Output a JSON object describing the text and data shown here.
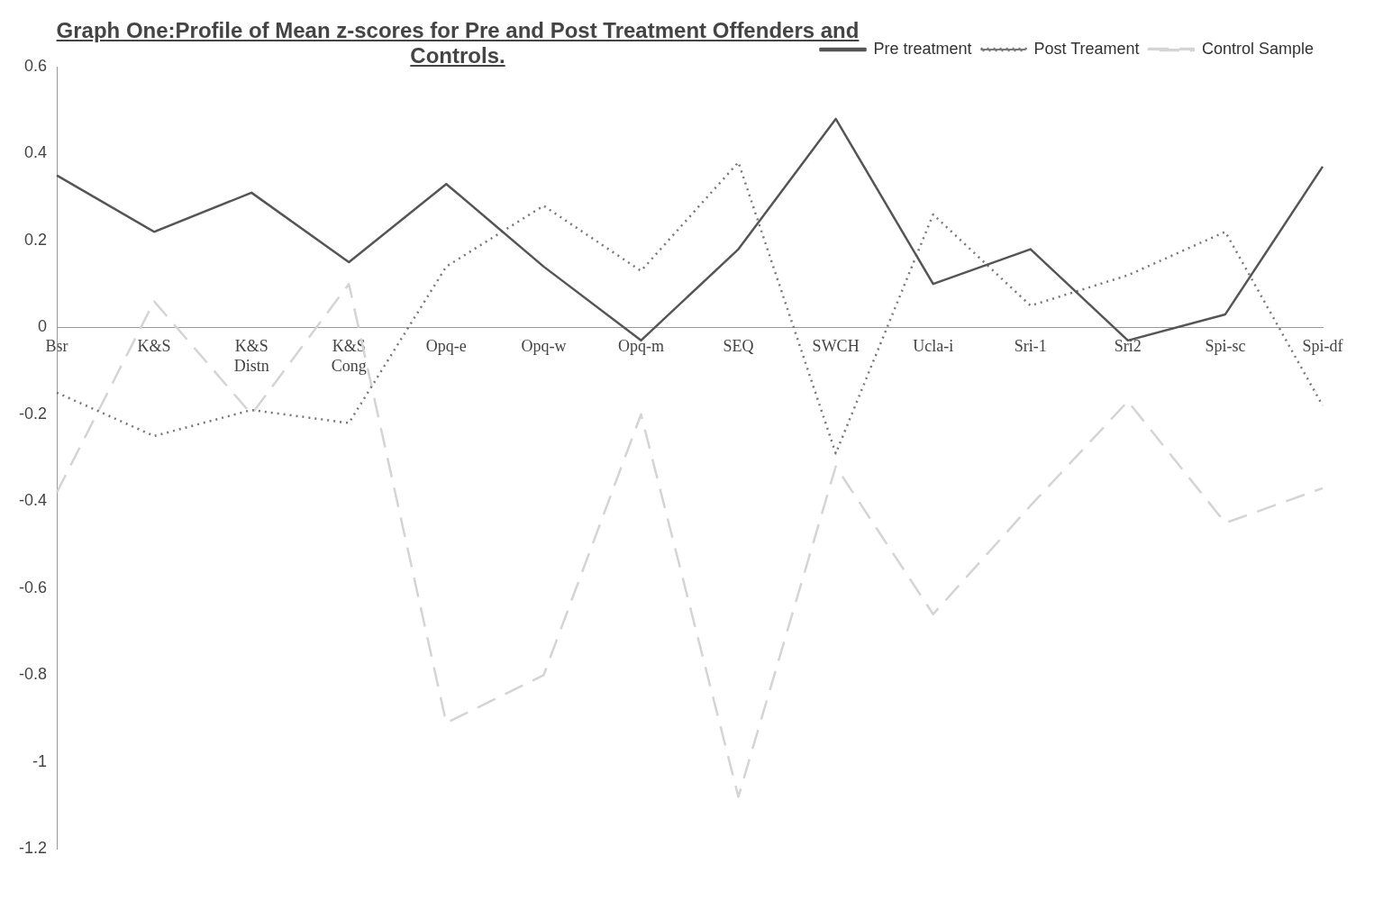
{
  "chart_data": {
    "type": "line",
    "title": "Graph One:Profile of Mean z-scores for Pre and Post Treatment Offenders and Controls.",
    "categories": [
      "Bsr",
      "K&S",
      "K&S Distn",
      "K&S Cong",
      "Opq-e",
      "Opq-w",
      "Opq-m",
      "SEQ",
      "SWCH",
      "Ucla-i",
      "Sri-1",
      "Sri2",
      "Spi-sc",
      "Spi-df"
    ],
    "series": [
      {
        "name": "Pre treatment",
        "color": "#555555",
        "line_style": "solid",
        "values": [
          0.35,
          0.22,
          0.31,
          0.15,
          0.33,
          0.14,
          -0.03,
          0.18,
          0.48,
          0.1,
          0.18,
          -0.03,
          0.03,
          0.37
        ]
      },
      {
        "name": "Post Treament",
        "color": "#777777",
        "line_style": "dotted",
        "values": [
          -0.15,
          -0.25,
          -0.19,
          -0.22,
          0.14,
          0.28,
          0.13,
          0.38,
          -0.29,
          0.26,
          0.05,
          0.12,
          0.22,
          -0.18
        ]
      },
      {
        "name": "Control Sample",
        "color": "#d4d4d4",
        "line_style": "dashed",
        "values": [
          -0.38,
          0.06,
          -0.2,
          0.1,
          -0.91,
          -0.8,
          -0.2,
          -1.08,
          -0.32,
          -0.66,
          -0.41,
          -0.17,
          -0.45,
          -0.37
        ]
      }
    ],
    "ylim": [
      -1.2,
      0.6
    ],
    "yticks": [
      -1.2,
      -1,
      -0.8,
      -0.6,
      -0.4,
      -0.2,
      0,
      0.2,
      0.4,
      0.6
    ],
    "grid": false,
    "legend": "top right",
    "marker": "none"
  }
}
